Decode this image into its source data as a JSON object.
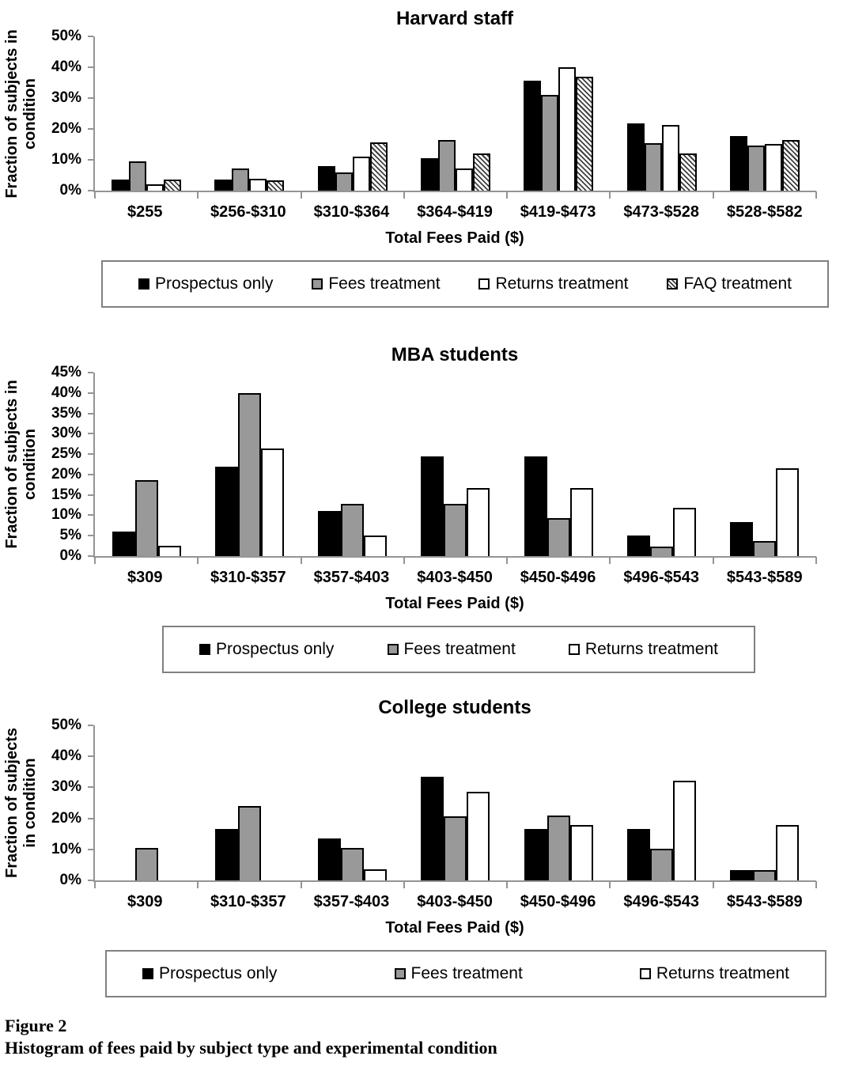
{
  "figure": {
    "caption_label": "Figure 2",
    "caption_text": "Histogram of fees paid by subject type and experimental condition"
  },
  "colors": {
    "bar_black": "#000000",
    "bar_gray": "#999999",
    "bar_white": "#ffffff",
    "hatch_line": "#3f3f3f",
    "axis_line": "#949494",
    "text": "#000000",
    "legend_border": "#808080"
  },
  "chart_data": [
    {
      "type": "bar",
      "title": "Harvard staff",
      "xlabel": "Total Fees Paid ($)",
      "ylabel": "Fraction of subjects in condition",
      "ylabel_lines": [
        "Fraction of subjects in",
        "condition"
      ],
      "ylim": [
        0,
        50
      ],
      "ytick_step": 10,
      "ytick_suffix": "%",
      "grid": false,
      "legend_position": "bottom-box",
      "categories": [
        "$255",
        "$256-$310",
        "$310-$364",
        "$364-$419",
        "$419-$473",
        "$473-$528",
        "$528-$582"
      ],
      "series": [
        {
          "name": "Prospectus only",
          "fill": "black",
          "values": [
            3.5,
            3.5,
            8.0,
            10.6,
            35.7,
            21.8,
            17.6
          ]
        },
        {
          "name": "Fees treatment",
          "fill": "gray",
          "values": [
            9.5,
            7.1,
            6.0,
            16.5,
            31.0,
            15.5,
            14.5
          ]
        },
        {
          "name": "Returns treatment",
          "fill": "white",
          "values": [
            2.0,
            3.8,
            11.0,
            7.1,
            40.0,
            21.4,
            15.2
          ]
        },
        {
          "name": "FAQ treatment",
          "fill": "hatch",
          "values": [
            3.5,
            3.3,
            15.7,
            12.1,
            37.0,
            12.1,
            16.5
          ]
        }
      ]
    },
    {
      "type": "bar",
      "title": "MBA students",
      "xlabel": "Total Fees Paid ($)",
      "ylabel": "Fraction of subjects in condition",
      "ylabel_lines": [
        "Fraction of subjects in",
        "condition"
      ],
      "ylim": [
        0,
        45
      ],
      "ytick_step": 5,
      "ytick_suffix": "%",
      "grid": false,
      "legend_position": "bottom-box",
      "categories": [
        "$309",
        "$310-$357",
        "$357-$403",
        "$403-$450",
        "$450-$496",
        "$496-$543",
        "$543-$589"
      ],
      "series": [
        {
          "name": "Prospectus only",
          "fill": "black",
          "values": [
            6.0,
            21.9,
            11.0,
            24.4,
            24.4,
            5.0,
            8.4
          ]
        },
        {
          "name": "Fees treatment",
          "fill": "gray",
          "values": [
            18.7,
            40.0,
            12.9,
            12.8,
            9.4,
            2.4,
            3.6
          ]
        },
        {
          "name": "Returns treatment",
          "fill": "white",
          "values": [
            2.5,
            26.3,
            5.0,
            16.7,
            16.7,
            11.9,
            21.5
          ]
        }
      ]
    },
    {
      "type": "bar",
      "title": "College students",
      "xlabel": "Total Fees Paid ($)",
      "ylabel": "Fraction of subjects in condition",
      "ylabel_lines": [
        "Fraction of subjects",
        "in condition"
      ],
      "ylim": [
        0,
        50
      ],
      "ytick_step": 10,
      "ytick_suffix": "%",
      "grid": false,
      "legend_position": "bottom-box",
      "categories": [
        "$309",
        "$310-$357",
        "$357-$403",
        "$403-$450",
        "$450-$496",
        "$496-$543",
        "$543-$589"
      ],
      "series": [
        {
          "name": "Prospectus only",
          "fill": "black",
          "values": [
            0,
            16.7,
            13.4,
            33.4,
            16.7,
            16.7,
            3.3
          ]
        },
        {
          "name": "Fees treatment",
          "fill": "gray",
          "values": [
            10.4,
            24.1,
            10.4,
            20.7,
            20.8,
            10.3,
            3.4
          ]
        },
        {
          "name": "Returns treatment",
          "fill": "white",
          "values": [
            0,
            0,
            3.5,
            28.6,
            17.9,
            32.1,
            17.9
          ]
        }
      ]
    }
  ]
}
